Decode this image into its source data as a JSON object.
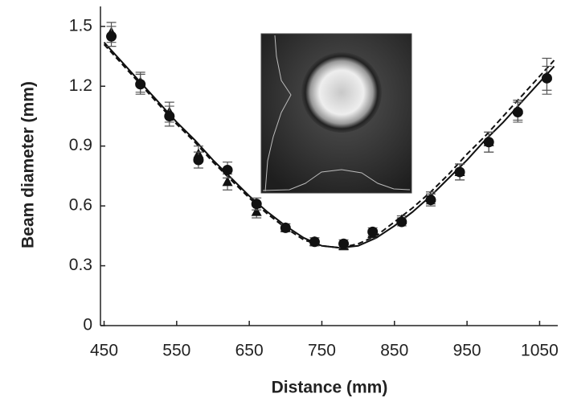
{
  "chart_data": {
    "type": "scatter",
    "x_label": "Distance (mm)",
    "y_label": "Beam diameter (mm)",
    "xlim": [
      445,
      1075
    ],
    "ylim": [
      0,
      1.6
    ],
    "xticks": [
      450,
      550,
      650,
      750,
      850,
      950,
      1050
    ],
    "yticks": [
      0,
      0.3,
      0.6,
      0.9,
      1.2,
      1.5
    ],
    "x": [
      460,
      500,
      540,
      580,
      620,
      660,
      700,
      740,
      780,
      820,
      860,
      900,
      940,
      980,
      1020,
      1060
    ],
    "series": [
      {
        "marker": "triangle",
        "color": "#111111",
        "values": [
          1.47,
          1.22,
          1.07,
          0.86,
          0.72,
          0.57,
          0.49,
          0.42,
          0.4,
          0.46,
          0.53,
          0.64,
          0.77,
          0.92,
          1.08,
          1.25
        ],
        "errors": [
          0.05,
          0.05,
          0.05,
          0.04,
          0.04,
          0.03,
          0.02,
          0.02,
          0.02,
          0.02,
          0.02,
          0.03,
          0.04,
          0.05,
          0.05,
          0.09
        ]
      },
      {
        "marker": "circle",
        "color": "#111111",
        "values": [
          1.45,
          1.21,
          1.05,
          0.83,
          0.78,
          0.61,
          0.49,
          0.42,
          0.41,
          0.47,
          0.52,
          0.63,
          0.77,
          0.92,
          1.07,
          1.24
        ],
        "errors": [
          0.05,
          0.05,
          0.05,
          0.04,
          0.04,
          0.03,
          0.02,
          0.02,
          0.02,
          0.02,
          0.02,
          0.03,
          0.04,
          0.05,
          0.05,
          0.06
        ]
      }
    ],
    "fit_x": [
      450,
      475,
      500,
      525,
      550,
      575,
      600,
      625,
      650,
      675,
      700,
      725,
      750,
      775,
      800,
      825,
      850,
      875,
      900,
      925,
      950,
      975,
      1000,
      1025,
      1050,
      1070
    ],
    "fits": [
      {
        "style": "solid",
        "color": "#111111",
        "values": [
          1.42,
          1.32,
          1.22,
          1.12,
          1.02,
          0.93,
          0.83,
          0.74,
          0.65,
          0.57,
          0.5,
          0.44,
          0.4,
          0.39,
          0.4,
          0.44,
          0.5,
          0.57,
          0.65,
          0.74,
          0.83,
          0.93,
          1.02,
          1.12,
          1.22,
          1.3
        ]
      },
      {
        "style": "dashed",
        "color": "#111111",
        "values": [
          1.41,
          1.31,
          1.21,
          1.11,
          1.01,
          0.92,
          0.82,
          0.73,
          0.64,
          0.56,
          0.49,
          0.43,
          0.4,
          0.39,
          0.41,
          0.45,
          0.52,
          0.59,
          0.67,
          0.76,
          0.86,
          0.95,
          1.05,
          1.15,
          1.25,
          1.33
        ]
      }
    ]
  }
}
